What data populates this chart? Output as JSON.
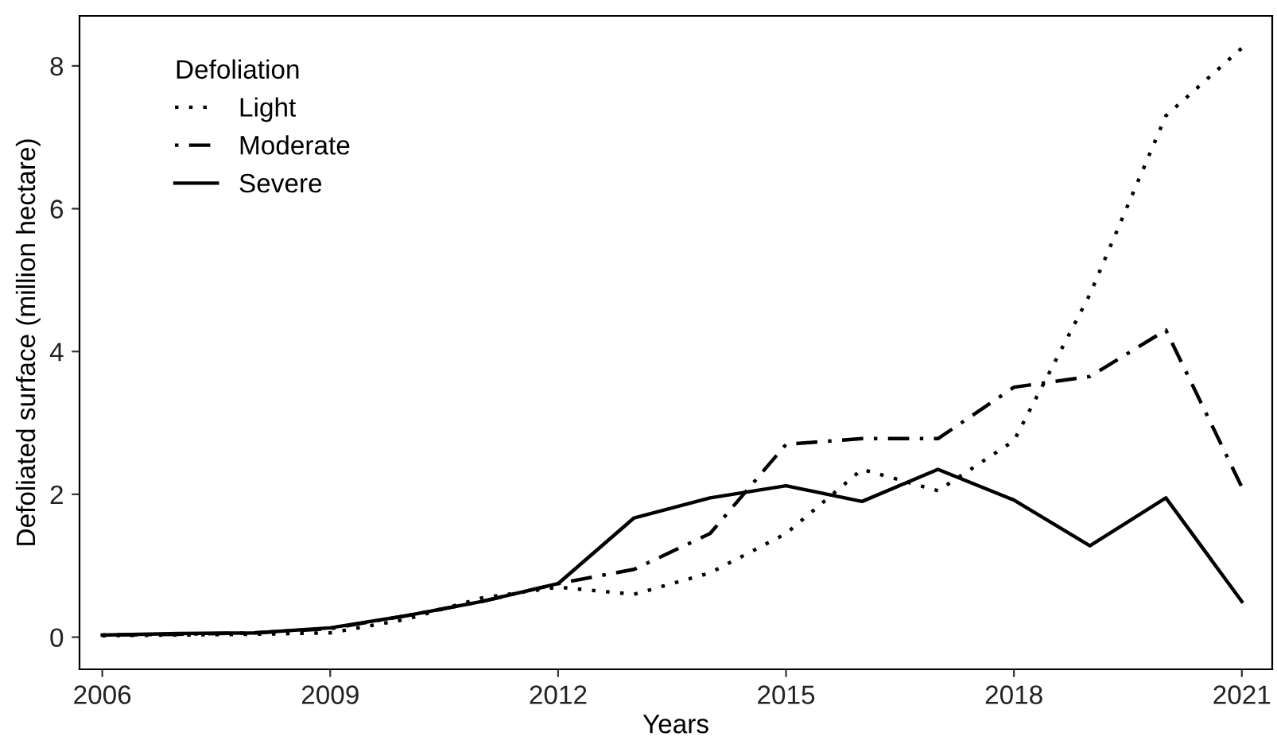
{
  "chart_data": {
    "type": "line",
    "xlabel": "Years",
    "ylabel": "Defoliated surface (million hectare)",
    "legend_title": "Defoliation",
    "legend": "top left",
    "grid": false,
    "marker": "none",
    "x": [
      2006,
      2007,
      2008,
      2009,
      2010,
      2011,
      2012,
      2013,
      2014,
      2015,
      2016,
      2017,
      2018,
      2019,
      2020,
      2021
    ],
    "xlim": [
      2005.7,
      2021.4
    ],
    "xticks": [
      2006,
      2009,
      2012,
      2015,
      2018,
      2021
    ],
    "ylim": [
      -0.45,
      8.7
    ],
    "yticks": [
      0,
      2,
      4,
      6,
      8
    ],
    "series": [
      {
        "name": "Light",
        "color": "#000000",
        "line_style": "dotted",
        "values": [
          0.02,
          0.03,
          0.04,
          0.06,
          0.25,
          0.55,
          0.7,
          0.6,
          0.9,
          1.45,
          2.35,
          2.05,
          2.75,
          4.8,
          7.3,
          8.25
        ]
      },
      {
        "name": "Moderate",
        "color": "#000000",
        "line_style": "dashdot",
        "values": [
          0.03,
          0.04,
          0.06,
          0.12,
          0.3,
          0.5,
          0.75,
          0.95,
          1.45,
          2.7,
          2.78,
          2.78,
          3.5,
          3.65,
          4.3,
          2.1
        ]
      },
      {
        "name": "Severe",
        "color": "#000000",
        "line_style": "solid",
        "values": [
          0.03,
          0.05,
          0.06,
          0.13,
          0.3,
          0.5,
          0.75,
          1.67,
          1.95,
          2.12,
          1.9,
          2.35,
          1.92,
          1.28,
          1.95,
          0.5
        ]
      }
    ]
  }
}
